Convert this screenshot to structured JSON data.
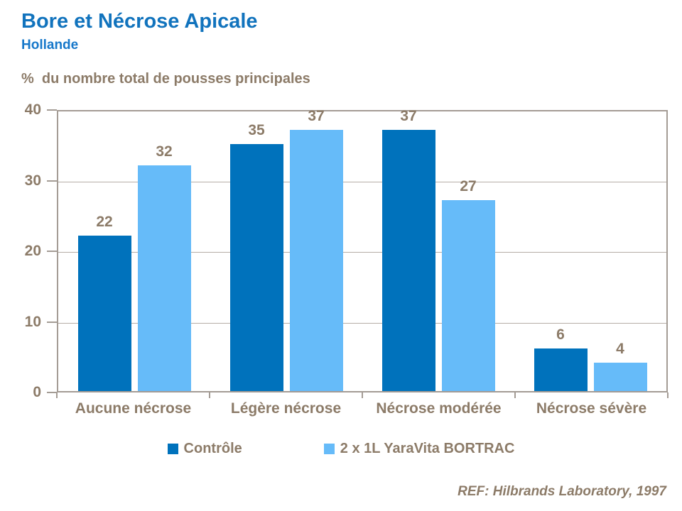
{
  "header": {
    "title": "Bore et Nécrose Apicale",
    "subtitle": "Hollande"
  },
  "axis_title": "%  du nombre total de pousses principales",
  "chart_data": {
    "type": "bar",
    "title": "Bore et Nécrose Apicale",
    "subtitle": "Hollande",
    "ylabel": "%  du nombre total de pousses principales",
    "xlabel": "",
    "categories": [
      "Aucune nécrose",
      "Légère nécrose",
      "Nécrose modérée",
      "Nécrose sévère"
    ],
    "series": [
      {
        "name": "Contrôle",
        "color": "#0072BC",
        "values": [
          22,
          35,
          37,
          6
        ]
      },
      {
        "name": "2 x 1L YaraVita BORTRAC",
        "color": "#66BBF9",
        "values": [
          32,
          37,
          27,
          4
        ]
      }
    ],
    "ylim": [
      0,
      40
    ],
    "yticks": [
      0,
      10,
      20,
      30,
      40
    ],
    "grid": true,
    "legend_position": "bottom",
    "data_labels": true,
    "annotation": "REF: Hilbrands Laboratory, 1997"
  },
  "footer": {
    "ref": "REF: Hilbrands Laboratory, 1997"
  },
  "colors": {
    "title_blue": "#1173BD",
    "subtitle_blue": "#1778CA",
    "text_brown": "#8C7B68",
    "axis_line": "#A49C95",
    "gridline": "#B5ADA6",
    "series_dark_blue": "#0072BC",
    "series_light_blue": "#66BBF9"
  }
}
